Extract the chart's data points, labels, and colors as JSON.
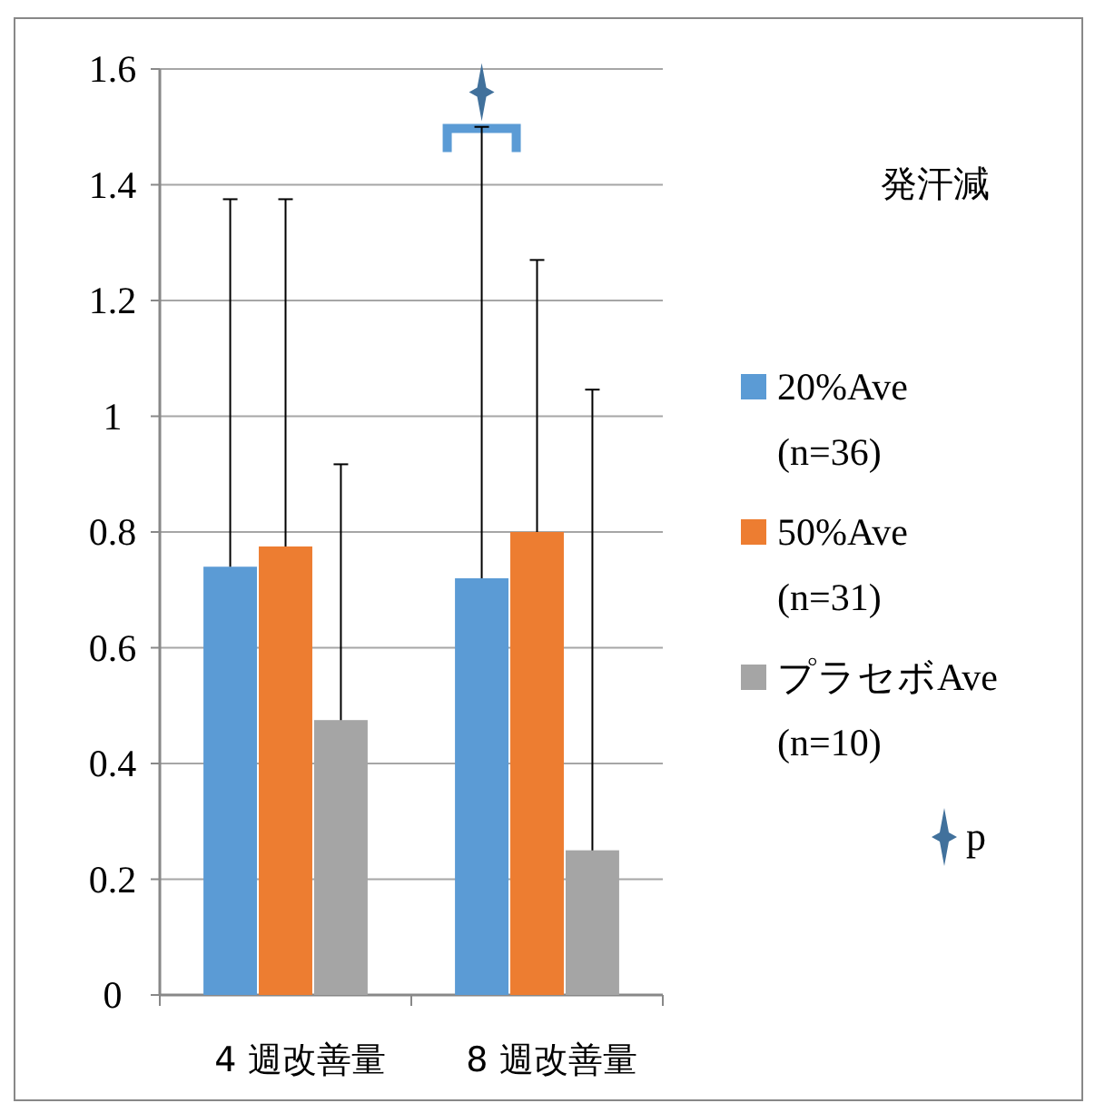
{
  "chart_data": {
    "type": "bar",
    "legend_title": "発汗減",
    "categories": [
      "4 週改善量",
      "8 週改善量"
    ],
    "ylim": [
      0,
      1.6
    ],
    "yticks": [
      0,
      {
        "value": 0.2,
        "label": "0.2"
      },
      {
        "value": 0.4,
        "label": "0.4"
      },
      {
        "value": 0.6,
        "label": "0.6"
      },
      {
        "value": 0.8,
        "label": "0.8"
      },
      1,
      {
        "value": 1.2,
        "label": "1.2"
      },
      {
        "value": 1.4,
        "label": "1.4"
      },
      {
        "value": 1.6,
        "label": "1.6"
      }
    ],
    "grid": "y",
    "legend": "right",
    "series": [
      {
        "name": "20%Ave (n=36)",
        "color": "#5b9bd5",
        "values": [
          0.74,
          0.72
        ],
        "errors": [
          [
            0.74,
            1.375
          ],
          [
            0.72,
            1.5
          ]
        ]
      },
      {
        "name": "50%Ave (n=31)",
        "color": "#ed7d31",
        "values": [
          0.775,
          0.8
        ],
        "errors": [
          [
            0.775,
            1.375
          ],
          [
            0.8,
            1.27
          ]
        ]
      },
      {
        "name": "プラセボAve (n=10)",
        "color": "#a5a5a5",
        "values": [
          0.475,
          0.25
        ],
        "errors": [
          [
            0.475,
            0.917
          ],
          [
            0.25,
            1.046
          ]
        ]
      },
      {
        "name": "p",
        "type": "scatter",
        "marker": "star",
        "color": "#41719c",
        "x": [
          "8 週改善量"
        ],
        "values": [
          1.56
        ]
      }
    ]
  }
}
